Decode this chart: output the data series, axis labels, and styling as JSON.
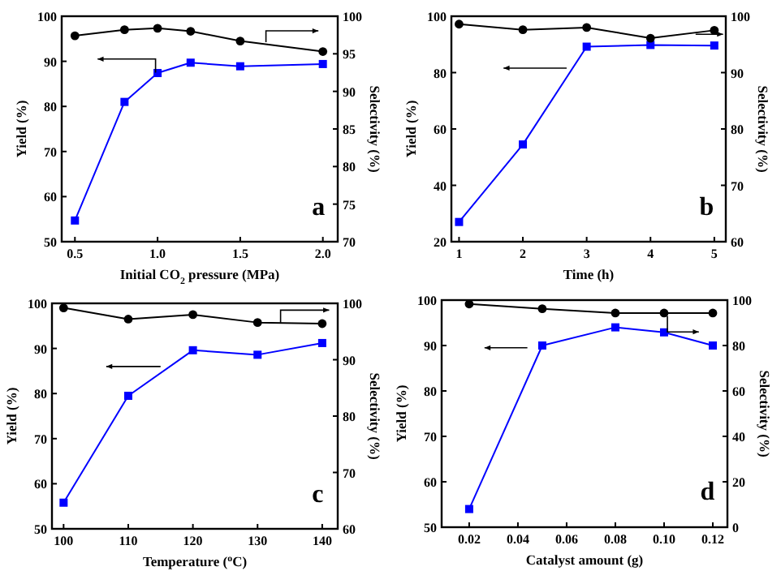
{
  "chart_data": [
    {
      "type": "line",
      "x": [
        0.5,
        0.8,
        1.0,
        1.2,
        1.5,
        2.0
      ],
      "xlim": [
        0.42,
        2.09
      ],
      "xticks": [
        0.5,
        {
          "value": 1,
          "label": "1.0"
        },
        1.5,
        {
          "value": 2,
          "label": "2.0"
        }
      ],
      "ylim": [
        50,
        100
      ],
      "yticks": [
        50,
        60,
        70,
        80,
        90,
        100
      ],
      "y2lim": [
        70,
        100
      ],
      "y2ticks": [
        70,
        75,
        80,
        85,
        90,
        95,
        100
      ],
      "xlabel": "Initial CO$_{2}$ pressure (MPa)",
      "ylabel": "Yield (%)",
      "y2label": "Selectivity (%)",
      "annotations": [
        "a"
      ],
      "series": [
        {
          "color": "#0000ff",
          "marker": "square",
          "values": [
            54.7,
            81,
            87.4,
            89.7,
            88.9,
            89.4
          ]
        },
        {
          "color": "#000000",
          "marker": "circle",
          "axis": "y2",
          "values": [
            97.4,
            98.2,
            98.4,
            98.0,
            96.7,
            95.3
          ]
        }
      ]
    },
    {
      "type": "line",
      "x": [
        1,
        2,
        3,
        4,
        5
      ],
      "xlim": [
        0.88,
        5.18
      ],
      "xticks": [
        1,
        2,
        3,
        4,
        5
      ],
      "ylim": [
        20,
        100
      ],
      "yticks": [
        20,
        40,
        60,
        80,
        100
      ],
      "y2lim": [
        60,
        100
      ],
      "y2ticks": [
        60,
        70,
        80,
        90,
        100
      ],
      "xlabel": "Time (h)",
      "ylabel": "Yield (%)",
      "y2label": "Selectivity (%)",
      "annotations": [
        "b"
      ],
      "series": [
        {
          "color": "#0000ff",
          "marker": "square",
          "values": [
            27,
            54.5,
            89.2,
            89.8,
            89.6
          ]
        },
        {
          "color": "#000000",
          "marker": "circle",
          "axis": "y2",
          "values": [
            98.6,
            97.6,
            98.0,
            96.1,
            97.5
          ]
        }
      ]
    },
    {
      "type": "line",
      "x": [
        100,
        110,
        120,
        130,
        140
      ],
      "xlim": [
        98.2,
        142.4
      ],
      "xticks": [
        100,
        110,
        120,
        130,
        140
      ],
      "ylim": [
        50,
        100
      ],
      "yticks": [
        50,
        60,
        70,
        80,
        90,
        100
      ],
      "y2lim": [
        60,
        100
      ],
      "y2ticks": [
        60,
        70,
        80,
        90,
        100
      ],
      "xlabel": "Temperature ($^{o}$C)",
      "ylabel": "Yield (%)",
      "y2label": "Selectivity (%)",
      "annotations": [
        "c"
      ],
      "series": [
        {
          "color": "#0000ff",
          "marker": "square",
          "values": [
            55.8,
            79.5,
            89.6,
            88.6,
            91.2
          ]
        },
        {
          "color": "#000000",
          "marker": "circle",
          "axis": "y2",
          "values": [
            99.2,
            97.2,
            98.0,
            96.6,
            96.4
          ]
        }
      ]
    },
    {
      "type": "line",
      "x": [
        0.02,
        0.05,
        0.08,
        0.1,
        0.12
      ],
      "xlim": [
        0.0087,
        0.126
      ],
      "xticks": [
        {
          "value": 0.02,
          "label": "0.02"
        },
        {
          "value": 0.04,
          "label": "0.04"
        },
        {
          "value": 0.06,
          "label": "0.06"
        },
        {
          "value": 0.08,
          "label": "0.08"
        },
        {
          "value": 0.1,
          "label": "0.10"
        },
        {
          "value": 0.12,
          "label": "0.12"
        }
      ],
      "ylim": [
        50,
        100
      ],
      "yticks": [
        50,
        60,
        70,
        80,
        90,
        100
      ],
      "y2lim": [
        0,
        100
      ],
      "y2ticks": [
        0,
        20,
        40,
        60,
        80,
        100
      ],
      "xlabel": "Catalyst amount (g)",
      "ylabel": "Yield (%)",
      "y2label": "Selectivity (%)",
      "annotations": [
        "d"
      ],
      "series": [
        {
          "color": "#0000ff",
          "marker": "square",
          "values": [
            54,
            90,
            94,
            92.9,
            90
          ]
        },
        {
          "color": "#000000",
          "marker": "circle",
          "axis": "y2",
          "values": [
            98.3,
            96.2,
            94.3,
            94.3,
            94.3
          ]
        }
      ]
    }
  ]
}
